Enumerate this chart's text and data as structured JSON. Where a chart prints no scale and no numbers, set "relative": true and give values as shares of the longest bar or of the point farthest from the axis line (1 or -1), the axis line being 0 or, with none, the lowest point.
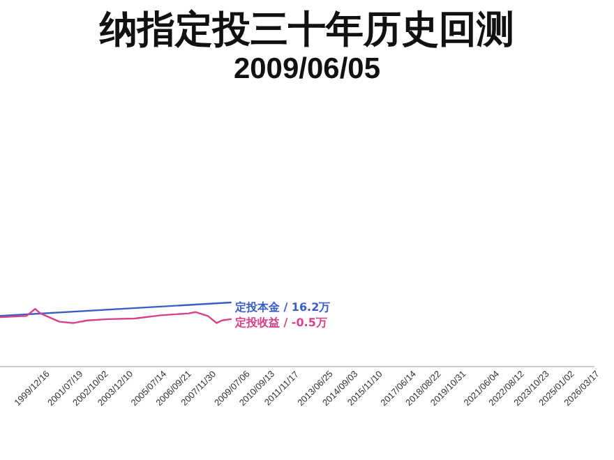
{
  "chart_data": {
    "type": "line",
    "title": "纳指定投三十年历史回测",
    "subtitle": "2009/06/05",
    "relative": true,
    "legend": false,
    "xlim": [
      "1998-05-29",
      "2026-10-15"
    ],
    "xticks": [
      {
        "value": "1999-12-16",
        "label": "1999/12/16"
      },
      {
        "value": "2001-07-19",
        "label": "2001/07/19"
      },
      {
        "value": "2002-10-02",
        "label": "2002/10/02"
      },
      {
        "value": "2003-12-10",
        "label": "2003/12/10"
      },
      {
        "value": "2005-07-14",
        "label": "2005/07/14"
      },
      {
        "value": "2006-09-21",
        "label": "2006/09/21"
      },
      {
        "value": "2007-11-30",
        "label": "2007/11/30"
      },
      {
        "value": "2009-07-06",
        "label": "2009/07/06"
      },
      {
        "value": "2010-09-13",
        "label": "2010/09/13"
      },
      {
        "value": "2011-11-17",
        "label": "2011/11/17"
      },
      {
        "value": "2013-06-25",
        "label": "2013/06/25"
      },
      {
        "value": "2014-09-03",
        "label": "2014/09/03"
      },
      {
        "value": "2015-11-10",
        "label": "2015/11/10"
      },
      {
        "value": "2017-06-14",
        "label": "2017/06/14"
      },
      {
        "value": "2018-08-22",
        "label": "2018/08/22"
      },
      {
        "value": "2019-10-31",
        "label": "2019/10/31"
      },
      {
        "value": "2021-06-04",
        "label": "2021/06/04"
      },
      {
        "value": "2022-08-12",
        "label": "2022/08/12"
      },
      {
        "value": "2023-10-23",
        "label": "2023/10/23"
      },
      {
        "value": "2025-01-02",
        "label": "2025/01/02"
      },
      {
        "value": "2026-03-17",
        "label": "2026/03/17"
      }
    ],
    "series": [
      {
        "name": "定投本金 / 16.2万",
        "color": "#3a5fc4",
        "x": [
          "1998-06",
          "2009-06-05"
        ],
        "values": [
          0.79,
          1
        ]
      },
      {
        "name": "定投收益 / -0.5万",
        "color": "#d6408c",
        "x": [
          "1998-06",
          "1999-09",
          "2000-02",
          "2000-05",
          "2000-10",
          "2001-04",
          "2001-12",
          "2002-08",
          "2003-08",
          "2004-11",
          "2006-02",
          "2007-06",
          "2007-10",
          "2008-05",
          "2008-10",
          "2009-01",
          "2009-06-05"
        ],
        "values": [
          0.77,
          0.79,
          0.9,
          0.83,
          0.77,
          0.7,
          0.68,
          0.72,
          0.74,
          0.75,
          0.8,
          0.83,
          0.85,
          0.79,
          0.68,
          0.72,
          0.74
        ]
      }
    ]
  }
}
